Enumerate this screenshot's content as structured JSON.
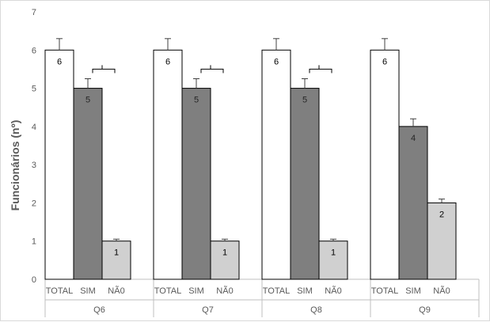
{
  "chart_data": {
    "type": "bar",
    "ylabel": "Funcionários (nº)",
    "xlabel": "",
    "ylim": [
      0,
      7
    ],
    "yticks": [
      0,
      1,
      2,
      3,
      4,
      5,
      6,
      7
    ],
    "grid": false,
    "groups": [
      {
        "name": "Q6",
        "categories": [
          "TOTAL",
          "SIM",
          "NÃ0"
        ],
        "values": [
          6,
          5,
          1
        ],
        "errors": [
          0.3,
          0.25,
          0.05
        ],
        "bracket": true
      },
      {
        "name": "Q7",
        "categories": [
          "TOTAL",
          "SIM",
          "NÃ0"
        ],
        "values": [
          6,
          5,
          1
        ],
        "errors": [
          0.3,
          0.25,
          0.05
        ],
        "bracket": true
      },
      {
        "name": "Q8",
        "categories": [
          "TOTAL",
          "SIM",
          "NÃ0"
        ],
        "values": [
          6,
          5,
          1
        ],
        "errors": [
          0.3,
          0.25,
          0.05
        ],
        "bracket": true
      },
      {
        "name": "Q9",
        "categories": [
          "TOTAL",
          "SIM",
          "NÃ0"
        ],
        "values": [
          6,
          4,
          2
        ],
        "errors": [
          0.3,
          0.2,
          0.1
        ],
        "bracket": false
      }
    ],
    "colors": {
      "TOTAL": "#ffffff",
      "SIM": "#7f7f7f",
      "NÃ0": "#d0d0d0",
      "outline": "#000000",
      "axis": "#bfbfbf",
      "text": "#595959"
    }
  }
}
